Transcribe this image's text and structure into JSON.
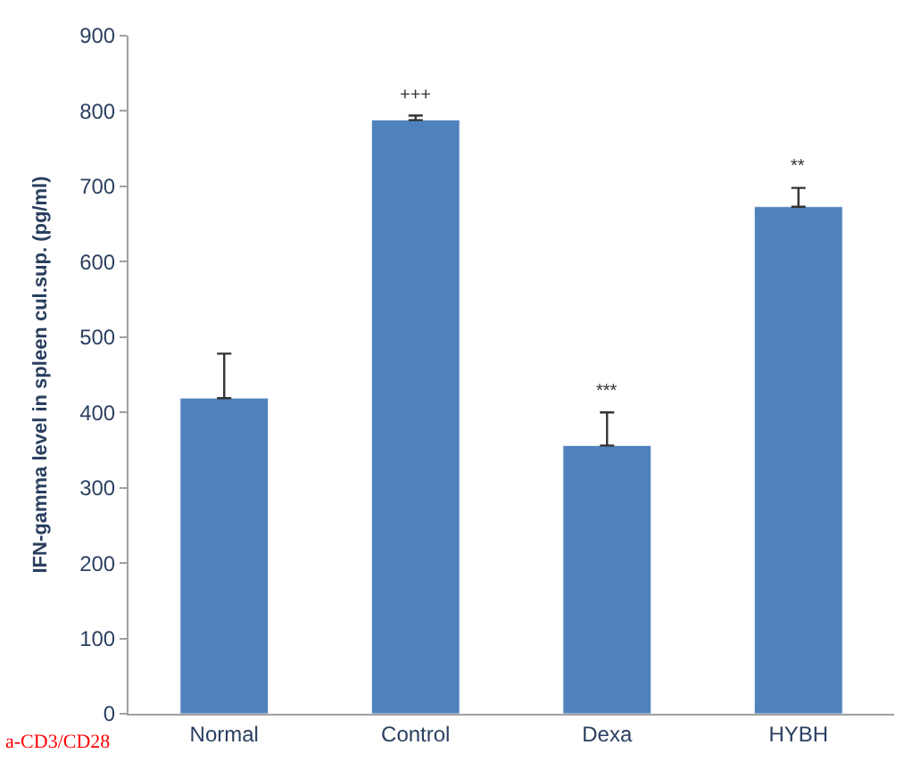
{
  "chart_data": {
    "type": "bar",
    "ylabel": "IFN-gamma level in spleen cul.sup. (pg/ml)",
    "categories": [
      "Normal",
      "Control",
      "Dexa",
      "HYBH"
    ],
    "values": [
      419,
      788,
      356,
      673
    ],
    "errors": [
      [
        419,
        478
      ],
      [
        788,
        794
      ],
      [
        356,
        400
      ],
      [
        673,
        698
      ]
    ],
    "color": "#4f81bd",
    "ylim": [
      0,
      900
    ],
    "yticks": [
      0,
      100,
      200,
      300,
      400,
      500,
      600,
      700,
      800,
      900
    ],
    "annotations": [
      {
        "text": "+++",
        "x": "Control",
        "y": 794
      },
      {
        "text": "***",
        "x": "Dexa",
        "y": 400
      },
      {
        "text": "**",
        "x": "HYBH",
        "y": 698
      },
      "a-CD3/CD28"
    ]
  }
}
